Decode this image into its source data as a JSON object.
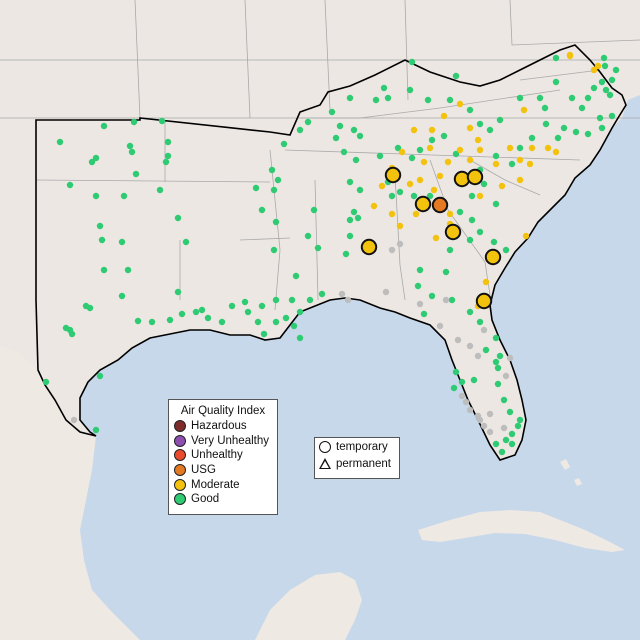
{
  "map": {
    "colors": {
      "land": "#ece7e3",
      "water": "#c7d8ea",
      "mexico_land": "#efe9e4",
      "state_border": "#a9a9a9",
      "region_border": "#000000",
      "Hazardous": "#7e2b2b",
      "Very Unhealthy": "#8e4fb0",
      "Unhealthy": "#e84a2b",
      "USG": "#e37a22",
      "Moderate": "#f2c20c",
      "Good": "#2ecb73",
      "No data": "#bdbdbd"
    }
  },
  "legend": {
    "title": "Air Quality Index",
    "categories": [
      {
        "label": "Hazardous",
        "color": "#7e2b2b"
      },
      {
        "label": "Very Unhealthy",
        "color": "#8e4fb0"
      },
      {
        "label": "Unhealthy",
        "color": "#e84a2b"
      },
      {
        "label": "USG",
        "color": "#e37a22"
      },
      {
        "label": "Moderate",
        "color": "#f2c20c"
      },
      {
        "label": "Good",
        "color": "#2ecb73"
      }
    ]
  },
  "monitor_legend": {
    "temporary": "temporary",
    "permanent": "permanent"
  }
}
